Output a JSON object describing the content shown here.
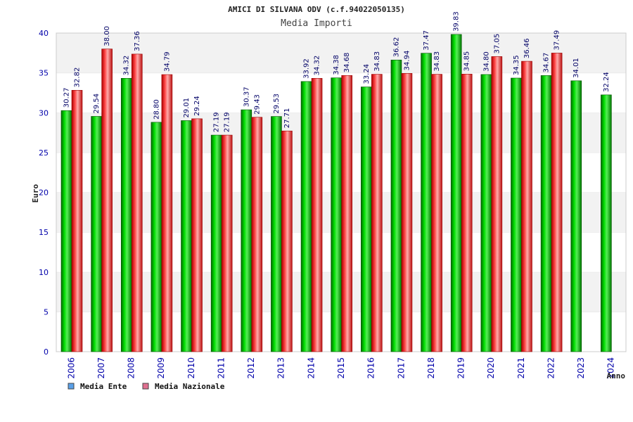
{
  "chart_data": {
    "type": "bar",
    "title": "AMICI DI SILVANA ODV (c.f.94022050135)",
    "subtitle": "Media Importi",
    "xlabel": "Anno",
    "ylabel": "Euro",
    "ylim": [
      0,
      40
    ],
    "yticks": [
      0,
      5,
      10,
      15,
      20,
      25,
      30,
      35,
      40
    ],
    "ytick_labels": [
      "0",
      "5",
      "10",
      "15",
      "20",
      "25",
      "30",
      "35",
      "40"
    ],
    "categories": [
      "2006",
      "2007",
      "2008",
      "2009",
      "2010",
      "2011",
      "2012",
      "2013",
      "2014",
      "2015",
      "2016",
      "2017",
      "2018",
      "2019",
      "2020",
      "2021",
      "2022",
      "2023",
      "2024"
    ],
    "series": [
      {
        "name": "Media Ente",
        "color": "#00aa00",
        "legend_color": "#5aa0e8",
        "values": [
          30.27,
          29.54,
          34.32,
          28.8,
          29.01,
          27.19,
          30.37,
          29.53,
          33.92,
          34.38,
          33.24,
          36.62,
          37.47,
          39.83,
          34.8,
          34.35,
          34.67,
          34.01,
          32.24
        ],
        "labels": [
          "30.27",
          "29.54",
          "34.32",
          "28.80",
          "29.01",
          "27.19",
          "30.37",
          "29.53",
          "33.92",
          "34.38",
          "33.24",
          "36.62",
          "37.47",
          "39.83",
          "34.80",
          "34.35",
          "34.67",
          "34.01",
          "32.24"
        ]
      },
      {
        "name": "Media Nazionale",
        "color": "#e82020",
        "legend_color": "#e07090",
        "values": [
          32.82,
          38.0,
          37.36,
          34.79,
          29.24,
          27.19,
          29.43,
          27.71,
          34.32,
          34.68,
          34.83,
          34.94,
          34.83,
          34.85,
          37.05,
          36.46,
          37.49,
          null,
          null
        ],
        "labels": [
          "32.82",
          "38.00",
          "37.36",
          "34.79",
          "29.24",
          "27.19",
          "29.43",
          "27.71",
          "34.32",
          "34.68",
          "34.83",
          "34.94",
          "34.83",
          "34.85",
          "37.05",
          "36.46",
          "37.49",
          null,
          null
        ]
      }
    ],
    "grid": true,
    "legend_position": "bottom-left"
  }
}
